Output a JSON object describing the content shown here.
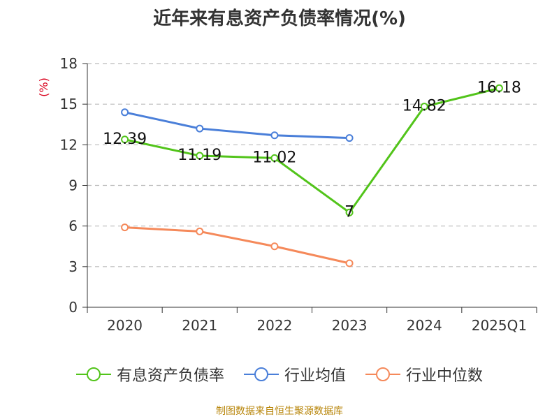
{
  "title": "近年来有息资产负债率情况(%)",
  "source": "制图数据来自恒生聚源数据库",
  "chart_data": {
    "type": "line",
    "title": "近年来有息资产负债率情况(%)",
    "ylabel": "(%)",
    "xlabel": "",
    "categories": [
      "2020",
      "2021",
      "2022",
      "2023",
      "2024",
      "2025Q1"
    ],
    "ylim": [
      0,
      18
    ],
    "yticks": [
      0,
      3,
      6,
      9,
      12,
      15,
      18
    ],
    "grid": true,
    "legend_position": "bottom",
    "series": [
      {
        "name": "有息资产负债率",
        "color": "#52c41a",
        "values": [
          12.39,
          11.19,
          11.02,
          7,
          14.82,
          16.18
        ],
        "labels": [
          "12.39",
          "11.19",
          "11.02",
          "7",
          "14.82",
          "16.18"
        ]
      },
      {
        "name": "行业均值",
        "color": "#4a7fd9",
        "values": [
          14.4,
          13.2,
          12.7,
          12.5,
          null,
          null
        ]
      },
      {
        "name": "行业中位数",
        "color": "#f5895a",
        "values": [
          5.9,
          5.6,
          4.5,
          3.25,
          null,
          null
        ]
      }
    ]
  }
}
